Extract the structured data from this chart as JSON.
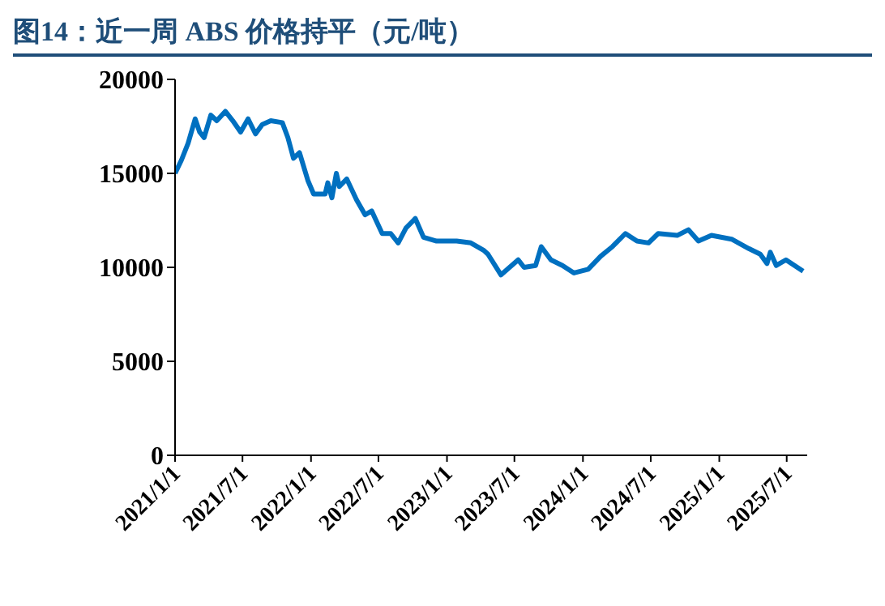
{
  "chart_data": {
    "type": "line",
    "title": "图14：近一周 ABS 价格持平（元/吨）",
    "x": [
      "2021-01-01",
      "2021-01-18",
      "2021-02-05",
      "2021-02-24",
      "2021-03-08",
      "2021-03-20",
      "2021-04-07",
      "2021-04-23",
      "2021-05-16",
      "2021-06-05",
      "2021-06-26",
      "2021-07-16",
      "2021-08-05",
      "2021-08-23",
      "2021-09-15",
      "2021-10-16",
      "2021-10-31",
      "2021-11-15",
      "2021-12-01",
      "2021-12-24",
      "2022-01-08",
      "2022-02-08",
      "2022-02-15",
      "2022-02-26",
      "2022-03-10",
      "2022-03-18",
      "2022-04-07",
      "2022-05-03",
      "2022-05-26",
      "2022-06-13",
      "2022-07-11",
      "2022-08-03",
      "2022-08-23",
      "2022-09-13",
      "2022-10-08",
      "2022-10-30",
      "2022-12-04",
      "2023-01-27",
      "2023-03-06",
      "2023-04-10",
      "2023-04-21",
      "2023-05-26",
      "2023-07-11",
      "2023-07-27",
      "2023-08-27",
      "2023-09-11",
      "2023-10-07",
      "2023-11-07",
      "2023-12-08",
      "2024-01-15",
      "2024-02-18",
      "2024-03-20",
      "2024-04-24",
      "2024-05-25",
      "2024-06-25",
      "2024-07-21",
      "2024-09-10",
      "2024-10-10",
      "2024-11-06",
      "2024-12-11",
      "2025-02-03",
      "2025-03-21",
      "2025-04-21",
      "2025-05-09",
      "2025-05-18",
      "2025-06-03",
      "2025-06-29",
      "2025-08-14"
    ],
    "series": [
      {
        "color": "#0070c0",
        "values": [
          15000,
          15700,
          16600,
          17900,
          17200,
          16900,
          18100,
          17800,
          18300,
          17800,
          17200,
          17900,
          17100,
          17600,
          17800,
          17700,
          16900,
          15800,
          16100,
          14600,
          13900,
          13900,
          14500,
          13700,
          15000,
          14300,
          14700,
          13600,
          12800,
          13000,
          11800,
          11800,
          11300,
          12100,
          12600,
          11600,
          11400,
          11400,
          11300,
          10900,
          10700,
          9600,
          10400,
          10000,
          10100,
          11100,
          10400,
          10100,
          9700,
          9900,
          10600,
          11100,
          11800,
          11400,
          11300,
          11800,
          11700,
          12000,
          11400,
          11700,
          11500,
          11000,
          10700,
          10200,
          10800,
          10100,
          10400,
          9800
        ]
      }
    ],
    "xlim": [
      "2021-01-01",
      "2025-08-25"
    ],
    "xticks": [
      {
        "value": "2021-01-01",
        "label": "2021/1/1"
      },
      {
        "value": "2021-07-01",
        "label": "2021/7/1"
      },
      {
        "value": "2022-01-01",
        "label": "2022/1/1"
      },
      {
        "value": "2022-07-01",
        "label": "2022/7/1"
      },
      {
        "value": "2023-01-01",
        "label": "2023/1/1"
      },
      {
        "value": "2023-07-01",
        "label": "2023/7/1"
      },
      {
        "value": "2024-01-01",
        "label": "2024/1/1"
      },
      {
        "value": "2024-07-01",
        "label": "2024/7/1"
      },
      {
        "value": "2025-01-01",
        "label": "2025/1/1"
      },
      {
        "value": "2025-07-01",
        "label": "2025/7/1"
      }
    ],
    "ylim": [
      0,
      20000
    ],
    "yticks": [
      0,
      5000,
      10000,
      15000,
      20000
    ],
    "marker": "none",
    "line_style": "solid"
  }
}
